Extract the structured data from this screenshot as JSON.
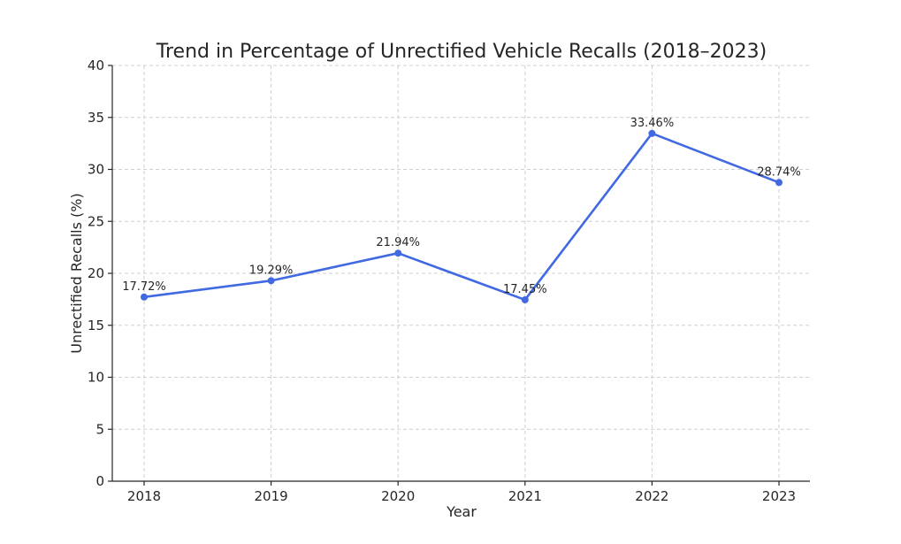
{
  "chart_data": {
    "type": "line",
    "title": "Trend in Percentage of Unrectified Vehicle Recalls (2018–2023)",
    "xlabel": "Year",
    "ylabel": "Unrectified Recalls (%)",
    "categories": [
      "2018",
      "2019",
      "2020",
      "2021",
      "2022",
      "2023"
    ],
    "series": [
      {
        "values": [
          17.72,
          19.29,
          21.94,
          17.45,
          33.46,
          28.74
        ],
        "labels": [
          "17.72%",
          "19.29%",
          "21.94%",
          "17.45%",
          "33.46%",
          "28.74%"
        ],
        "color": "#4169e1"
      }
    ],
    "ylim": [
      0,
      40
    ],
    "yticks": [
      "0",
      "5",
      "10",
      "15",
      "20",
      "25",
      "30",
      "35",
      "40"
    ],
    "grid": true,
    "marker": "circle"
  }
}
